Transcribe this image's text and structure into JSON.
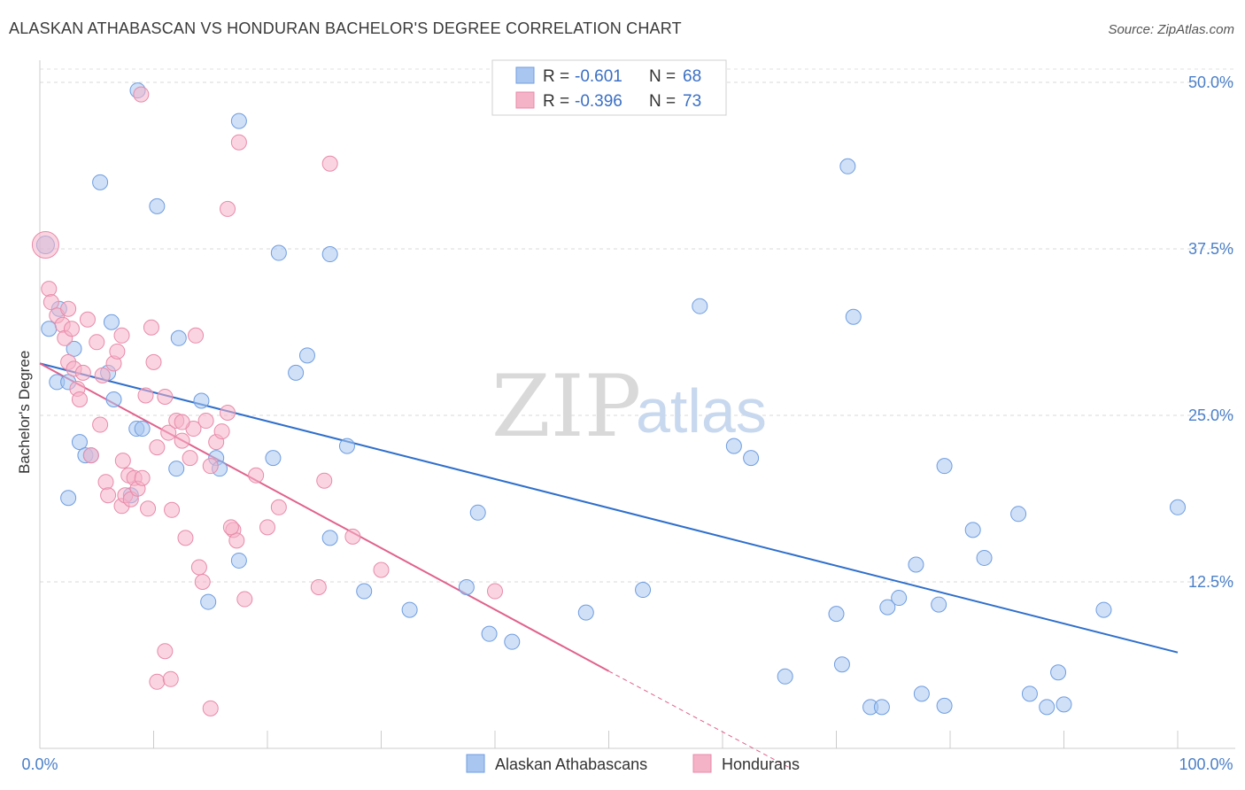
{
  "header": {
    "title": "ALASKAN ATHABASCAN VS HONDURAN BACHELOR'S DEGREE CORRELATION CHART",
    "source": "Source: ZipAtlas.com"
  },
  "watermark": {
    "zip": "ZIP",
    "atlas": "atlas"
  },
  "legend_top": {
    "rows": [
      {
        "r_label": "R =",
        "r_value": "-0.601",
        "n_label": "N =",
        "n_value": "68"
      },
      {
        "r_label": "R =",
        "r_value": "-0.396",
        "n_label": "N =",
        "n_value": "73"
      }
    ]
  },
  "legend_bottom": [
    "Alaskan Athabascans",
    "Hondurans"
  ],
  "chart_data": {
    "type": "scatter",
    "title": "ALASKAN ATHABASCAN VS HONDURAN BACHELOR'S DEGREE CORRELATION CHART",
    "xlabel": "",
    "ylabel": "Bachelor's Degree",
    "xlim": [
      0,
      100
    ],
    "ylim": [
      0,
      51
    ],
    "x_tick_labels": [
      "0.0%",
      "100.0%"
    ],
    "y_ticks": [
      12.5,
      25.0,
      37.5,
      50.0
    ],
    "y_tick_labels": [
      "12.5%",
      "25.0%",
      "37.5%",
      "50.0%"
    ],
    "grid": "horizontal dashed",
    "legend_placement": "top-center",
    "colors": {
      "athabascan": "#a8c6f0",
      "athabascan_line": "#2f6fcb",
      "honduran": "#f5b3c8",
      "honduran_line": "#e0628d"
    },
    "series": [
      {
        "name": "Alaskan Athabascans",
        "r": -0.601,
        "n": 68,
        "trend": {
          "x0": 0,
          "y0": 28.9,
          "x1": 100,
          "y1": 7.2
        },
        "points": [
          [
            0.5,
            37.8
          ],
          [
            0.8,
            31.5
          ],
          [
            1.5,
            27.5
          ],
          [
            1.7,
            33.0
          ],
          [
            2.5,
            18.8
          ],
          [
            3,
            30.0
          ],
          [
            3.5,
            23.0
          ],
          [
            4,
            22.0
          ],
          [
            4.5,
            22.0
          ],
          [
            6,
            28.2
          ],
          [
            6.3,
            32.0
          ],
          [
            6.5,
            26.2
          ],
          [
            8,
            19.0
          ],
          [
            8.5,
            24.0
          ],
          [
            9,
            24.0
          ],
          [
            2.5,
            27.5
          ],
          [
            5.3,
            42.5
          ],
          [
            10.3,
            40.7
          ],
          [
            8.6,
            49.4
          ],
          [
            17.5,
            47.1
          ],
          [
            12,
            21.0
          ],
          [
            12.2,
            30.8
          ],
          [
            14.2,
            26.1
          ],
          [
            15.5,
            21.8
          ],
          [
            15.8,
            21.0
          ],
          [
            14.8,
            11.0
          ],
          [
            17.5,
            14.1
          ],
          [
            21,
            37.2
          ],
          [
            22.5,
            28.2
          ],
          [
            23.5,
            29.5
          ],
          [
            20.5,
            21.8
          ],
          [
            25.5,
            37.1
          ],
          [
            27,
            22.7
          ],
          [
            25.5,
            15.8
          ],
          [
            28.5,
            11.8
          ],
          [
            32.5,
            10.4
          ],
          [
            37.5,
            12.1
          ],
          [
            38.5,
            17.7
          ],
          [
            39.5,
            8.6
          ],
          [
            41.5,
            8.0
          ],
          [
            48,
            10.2
          ],
          [
            53,
            11.9
          ],
          [
            58,
            33.2
          ],
          [
            61,
            22.7
          ],
          [
            62.5,
            21.8
          ],
          [
            65.5,
            5.4
          ],
          [
            70,
            10.1
          ],
          [
            70.5,
            6.3
          ],
          [
            71,
            43.7
          ],
          [
            71.5,
            32.4
          ],
          [
            73,
            3.1
          ],
          [
            74,
            3.1
          ],
          [
            74.5,
            10.6
          ],
          [
            75.5,
            11.3
          ],
          [
            77,
            13.8
          ],
          [
            77.5,
            4.1
          ],
          [
            79,
            10.8
          ],
          [
            79.5,
            21.2
          ],
          [
            79.5,
            3.2
          ],
          [
            82,
            16.4
          ],
          [
            83,
            14.3
          ],
          [
            86,
            17.6
          ],
          [
            87,
            4.1
          ],
          [
            88.5,
            3.1
          ],
          [
            90,
            3.3
          ],
          [
            89.5,
            5.7
          ],
          [
            93.5,
            10.4
          ],
          [
            100,
            18.1
          ]
        ]
      },
      {
        "name": "Hondurans",
        "r": -0.396,
        "n": 73,
        "trend": {
          "x0": 0,
          "y0": 28.9,
          "x1": 50,
          "y1": 5.8,
          "dash_to": [
            66,
            -1.5
          ]
        },
        "points": [
          [
            0.5,
            37.8
          ],
          [
            0.8,
            34.5
          ],
          [
            1,
            33.5
          ],
          [
            1.5,
            32.5
          ],
          [
            2,
            31.8
          ],
          [
            2.2,
            30.8
          ],
          [
            2.5,
            29.0
          ],
          [
            3,
            28.5
          ],
          [
            3.3,
            27.0
          ],
          [
            3.5,
            26.2
          ],
          [
            2.8,
            31.5
          ],
          [
            2.5,
            33.0
          ],
          [
            3.8,
            28.2
          ],
          [
            4.2,
            32.2
          ],
          [
            4.5,
            22.0
          ],
          [
            5,
            30.5
          ],
          [
            5.3,
            24.3
          ],
          [
            5.5,
            28.0
          ],
          [
            5.8,
            20.0
          ],
          [
            6,
            19.0
          ],
          [
            6.5,
            28.9
          ],
          [
            6.8,
            29.8
          ],
          [
            7.3,
            21.6
          ],
          [
            7.2,
            18.2
          ],
          [
            7.5,
            19.0
          ],
          [
            7.8,
            20.5
          ],
          [
            8,
            18.7
          ],
          [
            8.3,
            20.3
          ],
          [
            8.6,
            19.5
          ],
          [
            9,
            20.3
          ],
          [
            9.3,
            26.5
          ],
          [
            9.5,
            18.0
          ],
          [
            9.8,
            31.6
          ],
          [
            10,
            29.0
          ],
          [
            10.3,
            22.6
          ],
          [
            11,
            26.4
          ],
          [
            11.3,
            23.7
          ],
          [
            11.6,
            17.9
          ],
          [
            12,
            24.6
          ],
          [
            12.5,
            23.1
          ],
          [
            12.8,
            15.8
          ],
          [
            13.2,
            21.8
          ],
          [
            13.5,
            24.0
          ],
          [
            13.7,
            31.0
          ],
          [
            14,
            13.6
          ],
          [
            14.3,
            12.5
          ],
          [
            14.6,
            24.6
          ],
          [
            15,
            21.2
          ],
          [
            15.5,
            23.0
          ],
          [
            16,
            23.8
          ],
          [
            16.5,
            25.2
          ],
          [
            17,
            16.4
          ],
          [
            17.3,
            15.6
          ],
          [
            17.5,
            45.5
          ],
          [
            16.5,
            40.5
          ],
          [
            18,
            11.2
          ],
          [
            20,
            16.6
          ],
          [
            21,
            18.1
          ],
          [
            24.5,
            12.1
          ],
          [
            25,
            20.1
          ],
          [
            25.5,
            43.9
          ],
          [
            27.5,
            15.9
          ],
          [
            30,
            13.4
          ],
          [
            40,
            11.8
          ],
          [
            8.9,
            49.1
          ],
          [
            11,
            7.3
          ],
          [
            10.3,
            5.0
          ],
          [
            11.5,
            5.2
          ],
          [
            15,
            3.0
          ],
          [
            12.5,
            24.5
          ],
          [
            16.8,
            16.6
          ],
          [
            19,
            20.5
          ],
          [
            7.2,
            31.0
          ]
        ]
      }
    ]
  }
}
